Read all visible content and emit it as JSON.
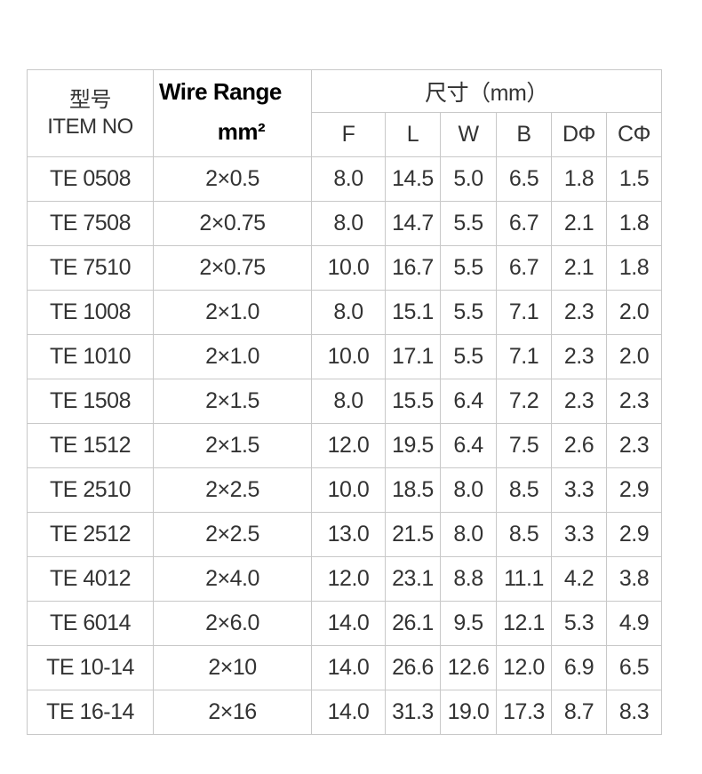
{
  "header": {
    "item_cn": "型号",
    "item_en": "ITEM NO",
    "wire_range": "Wire Range",
    "wire_unit": "mm²",
    "dimensions": "尺寸（mm）",
    "columns": [
      "F",
      "L",
      "W",
      "B",
      "DΦ",
      "CΦ"
    ]
  },
  "rows": [
    [
      "TE 0508",
      "2×0.5",
      "8.0",
      "14.5",
      "5.0",
      "6.5",
      "1.8",
      "1.5"
    ],
    [
      "TE 7508",
      "2×0.75",
      "8.0",
      "14.7",
      "5.5",
      "6.7",
      "2.1",
      "1.8"
    ],
    [
      "TE 7510",
      "2×0.75",
      "10.0",
      "16.7",
      "5.5",
      "6.7",
      "2.1",
      "1.8"
    ],
    [
      "TE 1008",
      "2×1.0",
      "8.0",
      "15.1",
      "5.5",
      "7.1",
      "2.3",
      "2.0"
    ],
    [
      "TE 1010",
      "2×1.0",
      "10.0",
      "17.1",
      "5.5",
      "7.1",
      "2.3",
      "2.0"
    ],
    [
      "TE 1508",
      "2×1.5",
      "8.0",
      "15.5",
      "6.4",
      "7.2",
      "2.3",
      "2.3"
    ],
    [
      "TE 1512",
      "2×1.5",
      "12.0",
      "19.5",
      "6.4",
      "7.5",
      "2.6",
      "2.3"
    ],
    [
      "TE 2510",
      "2×2.5",
      "10.0",
      "18.5",
      "8.0",
      "8.5",
      "3.3",
      "2.9"
    ],
    [
      "TE 2512",
      "2×2.5",
      "13.0",
      "21.5",
      "8.0",
      "8.5",
      "3.3",
      "2.9"
    ],
    [
      "TE 4012",
      "2×4.0",
      "12.0",
      "23.1",
      "8.8",
      "11.1",
      "4.2",
      "3.8"
    ],
    [
      "TE 6014",
      "2×6.0",
      "14.0",
      "26.1",
      "9.5",
      "12.1",
      "5.3",
      "4.9"
    ],
    [
      "TE 10-14",
      "2×10",
      "14.0",
      "26.6",
      "12.6",
      "12.0",
      "6.9",
      "6.5"
    ],
    [
      "TE 16-14",
      "2×16",
      "14.0",
      "31.3",
      "19.0",
      "17.3",
      "8.7",
      "8.3"
    ]
  ]
}
